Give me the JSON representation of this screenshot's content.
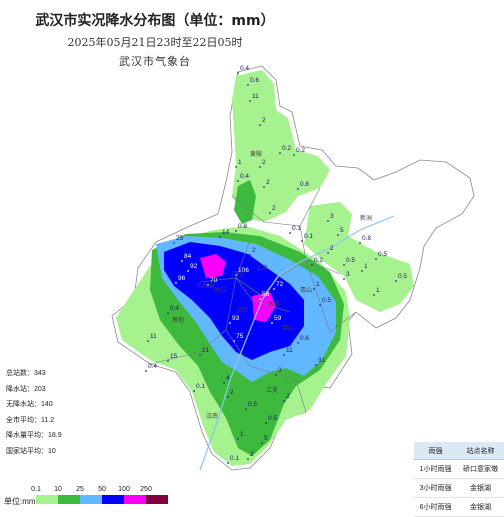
{
  "header": {
    "title": "武汉市实况降水分布图（单位：mm）",
    "subtitle": "2025年05月21日23时至22日05时",
    "agency": "武汉市气象台"
  },
  "stats": [
    {
      "label": "总站数",
      "value": "343"
    },
    {
      "label": "降水站",
      "value": "203"
    },
    {
      "label": "无降水站",
      "value": "140"
    },
    {
      "label": "全市平均",
      "value": "11.2"
    },
    {
      "label": "降水量平均",
      "value": "18.9"
    },
    {
      "label": "国家站平均",
      "value": "10"
    }
  ],
  "legend": {
    "unit": "单位:mm",
    "ticks": [
      "0.1",
      "10",
      "25",
      "50",
      "100",
      "250"
    ],
    "colors": [
      "#a6f28f",
      "#3dba3d",
      "#61b8ff",
      "#0000ff",
      "#fa00fa",
      "#800040"
    ]
  },
  "station_table": {
    "headers": [
      "雨强",
      "站点名称"
    ],
    "rows": [
      [
        "1小时雨强",
        "硚口意家墩"
      ],
      [
        "3小时雨强",
        "金银湖"
      ],
      [
        "6小时雨强",
        "金银湖"
      ]
    ]
  },
  "map": {
    "district_labels": [
      "黄陂",
      "新洲",
      "东西湖",
      "江汉",
      "江岸",
      "硚口",
      "汉阳",
      "武昌",
      "洪山",
      "青山",
      "蔡甸",
      "江夏",
      "汉南"
    ],
    "values": [
      {
        "text": "0.4",
        "kind": "lo"
      },
      {
        "text": "0.6",
        "kind": "lo"
      },
      {
        "text": "11",
        "kind": "mid"
      },
      {
        "text": "2",
        "kind": "lo"
      },
      {
        "text": "0.2",
        "kind": "lo"
      },
      {
        "text": "0.2",
        "kind": "lo"
      },
      {
        "text": "1",
        "kind": "lo"
      },
      {
        "text": "2",
        "kind": "lo"
      },
      {
        "text": "0.4",
        "kind": "lo"
      },
      {
        "text": "2",
        "kind": "lo"
      },
      {
        "text": "0.8",
        "kind": "lo"
      },
      {
        "text": "3",
        "kind": "lo"
      },
      {
        "text": "5",
        "kind": "lo"
      },
      {
        "text": "0.1",
        "kind": "lo"
      },
      {
        "text": "0.2",
        "kind": "lo"
      },
      {
        "text": "2",
        "kind": "lo"
      },
      {
        "text": "0.5",
        "kind": "lo"
      },
      {
        "text": "3",
        "kind": "lo"
      },
      {
        "text": "1",
        "kind": "lo"
      },
      {
        "text": "0.5",
        "kind": "lo"
      },
      {
        "text": "1",
        "kind": "lo"
      },
      {
        "text": "0.5",
        "kind": "lo"
      },
      {
        "text": "0.8",
        "kind": "lo"
      },
      {
        "text": "2",
        "kind": "lo"
      },
      {
        "text": "25",
        "kind": "mid"
      },
      {
        "text": "14",
        "kind": "mid"
      },
      {
        "text": "84",
        "kind": "hi"
      },
      {
        "text": "92",
        "kind": "hi"
      },
      {
        "text": "96",
        "kind": "hi"
      },
      {
        "text": "70",
        "kind": "hi"
      },
      {
        "text": "106",
        "kind": "hi"
      },
      {
        "text": "72",
        "kind": "hi"
      },
      {
        "text": "56",
        "kind": "hi"
      },
      {
        "text": "93",
        "kind": "hi"
      },
      {
        "text": "75",
        "kind": "hi"
      },
      {
        "text": "59",
        "kind": "hi"
      },
      {
        "text": "0.4",
        "kind": "lo"
      },
      {
        "text": "11",
        "kind": "mid"
      },
      {
        "text": "15",
        "kind": "mid"
      },
      {
        "text": "21",
        "kind": "mid"
      },
      {
        "text": "31",
        "kind": "mid"
      },
      {
        "text": "11",
        "kind": "mid"
      },
      {
        "text": "0.1",
        "kind": "lo"
      },
      {
        "text": "2",
        "kind": "lo"
      },
      {
        "text": "0.5",
        "kind": "lo"
      },
      {
        "text": "0.5",
        "kind": "lo"
      },
      {
        "text": "1",
        "kind": "lo"
      },
      {
        "text": "5",
        "kind": "lo"
      },
      {
        "text": "2",
        "kind": "lo"
      },
      {
        "text": "0.1",
        "kind": "lo"
      },
      {
        "text": "0.4",
        "kind": "lo"
      },
      {
        "text": "4",
        "kind": "lo"
      },
      {
        "text": "2",
        "kind": "lo"
      },
      {
        "text": "0.6",
        "kind": "lo"
      },
      {
        "text": "0.5",
        "kind": "lo"
      },
      {
        "text": "1",
        "kind": "lo"
      },
      {
        "text": "2",
        "kind": "lo"
      },
      {
        "text": "0.1",
        "kind": "lo"
      },
      {
        "text": "0.8",
        "kind": "lo"
      },
      {
        "text": "3",
        "kind": "lo"
      }
    ]
  }
}
